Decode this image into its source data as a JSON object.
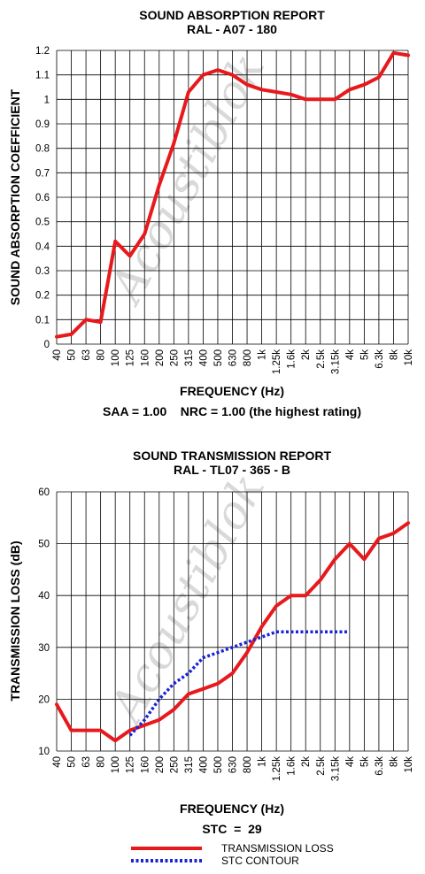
{
  "watermark": "Acoustiblok",
  "chart_data": [
    {
      "type": "line",
      "title": "SOUND ABSORPTION REPORT",
      "subtitle": "RAL  -  A07 - 180",
      "xlabel": "FREQUENCY (Hz)",
      "ylabel": "SOUND ABSORPTION COEFFICIENT",
      "categories": [
        "40",
        "50",
        "63",
        "80",
        "100",
        "125",
        "160",
        "200",
        "250",
        "315",
        "400",
        "500",
        "630",
        "800",
        "1k",
        "1.25k",
        "1.6k",
        "2k",
        "2.5k",
        "3.15k",
        "4k",
        "5k",
        "6.3k",
        "8k",
        "10k"
      ],
      "ylim": [
        0,
        1.2
      ],
      "yticks": [
        "0",
        "0.1",
        "0.2",
        "0.3",
        "0.4",
        "0.5",
        "0.6",
        "0.7",
        "0.8",
        "0.9",
        "1",
        "1.1",
        "1.2"
      ],
      "grid": true,
      "series": [
        {
          "values": [
            0.03,
            0.04,
            0.1,
            0.09,
            0.42,
            0.36,
            0.45,
            0.65,
            0.82,
            1.03,
            1.1,
            1.12,
            1.1,
            1.06,
            1.04,
            1.03,
            1.02,
            1.0,
            1.0,
            1.0,
            1.04,
            1.06,
            1.09,
            1.19,
            1.18
          ],
          "color": "#e8191c",
          "style": "solid"
        }
      ],
      "note": "SAA = 1.00    NRC = 1.00 (the highest rating)"
    },
    {
      "type": "line",
      "title": "SOUND TRANSMISSION REPORT",
      "subtitle": "RAL - TL07 - 365 - B",
      "xlabel": "FREQUENCY (Hz)",
      "ylabel": "TRANSMISSION LOSS (dB)",
      "categories": [
        "40",
        "50",
        "63",
        "80",
        "100",
        "125",
        "160",
        "200",
        "250",
        "315",
        "400",
        "500",
        "630",
        "800",
        "1k",
        "1.25k",
        "1.6k",
        "2k",
        "2.5k",
        "3.15k",
        "4k",
        "5k",
        "6.3k",
        "8k",
        "10k"
      ],
      "ylim": [
        10,
        60
      ],
      "yticks": [
        "10",
        "20",
        "30",
        "40",
        "50",
        "60"
      ],
      "grid": true,
      "series": [
        {
          "name": "TRANSMISSION LOSS",
          "values": [
            19,
            14,
            14,
            14,
            12,
            14,
            15,
            16,
            18,
            21,
            22,
            23,
            25,
            29,
            34,
            38,
            40,
            40,
            43,
            47,
            50,
            47,
            51,
            52,
            54
          ],
          "color": "#e8191c",
          "style": "solid"
        },
        {
          "name": "STC CONTOUR",
          "values": [
            null,
            null,
            null,
            null,
            null,
            13,
            16,
            20,
            23,
            25,
            28,
            29,
            30,
            31,
            32,
            33,
            33,
            33,
            33,
            33,
            33,
            null,
            null,
            null,
            null
          ],
          "color": "#1a24d6",
          "style": "dotted"
        }
      ],
      "note": "STC  =  29",
      "legend_position": "bottom-center"
    }
  ]
}
